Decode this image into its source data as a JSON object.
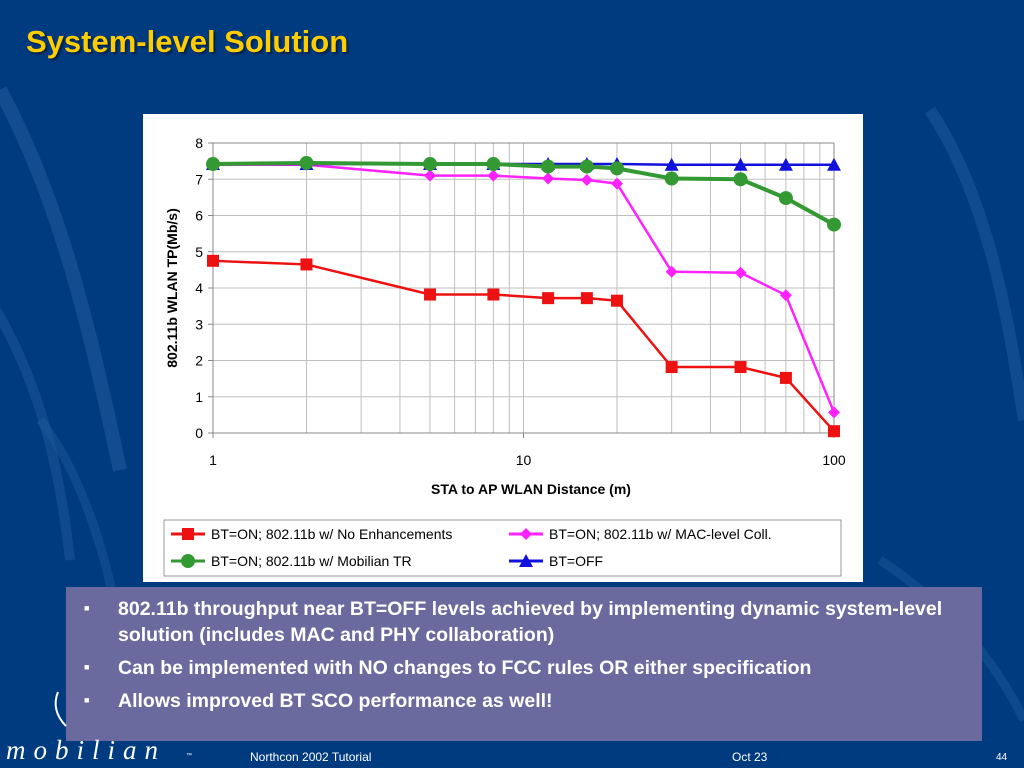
{
  "slide": {
    "title": "System-level Solution",
    "bullets": [
      "802.11b throughput near BT=OFF levels achieved by implementing dynamic system-level solution (includes MAC and PHY collaboration)",
      "Can be implemented with NO changes to FCC rules OR either specification",
      "Allows improved BT SCO performance as well!"
    ],
    "bullet_marker": "■"
  },
  "footer": {
    "logo": "mobilian",
    "logo_tm": "™",
    "event": "Northcon 2002 Tutorial",
    "date": "Oct 23",
    "page": "44"
  },
  "colors": {
    "background": "#003b80",
    "title": "#ffcc00",
    "bullet_box": "#6a6a9e"
  },
  "chart_data": {
    "type": "line",
    "title": "",
    "xlabel": "STA to AP WLAN Distance (m)",
    "ylabel": "802.11b WLAN TP(Mb/s)",
    "x_scale": "log",
    "xlim": [
      1,
      100
    ],
    "ylim": [
      0,
      8
    ],
    "x_ticks": [
      "1",
      "10",
      "100"
    ],
    "y_ticks": [
      "0",
      "1",
      "2",
      "3",
      "4",
      "5",
      "6",
      "7",
      "8"
    ],
    "grid": true,
    "legend_position": "bottom",
    "x": [
      1,
      2,
      5,
      8,
      12,
      16,
      20,
      30,
      50,
      70,
      100
    ],
    "series": [
      {
        "name": "BT=ON; 802.11b w/ No Enhancements",
        "color": "#ee1111",
        "marker": "square",
        "values": [
          4.75,
          4.65,
          3.82,
          3.82,
          3.72,
          3.72,
          3.65,
          1.82,
          1.82,
          1.52,
          0.05
        ]
      },
      {
        "name": "BT=ON; 802.11b w/ MAC-level Coll.",
        "color": "#ff22ff",
        "marker": "diamond",
        "values": [
          7.4,
          7.4,
          7.1,
          7.1,
          7.02,
          6.98,
          6.88,
          4.45,
          4.42,
          3.8,
          0.57
        ]
      },
      {
        "name": "BT=ON; 802.11b w/ Mobilian TR",
        "color": "#339933",
        "marker": "circle",
        "values": [
          7.42,
          7.45,
          7.42,
          7.42,
          7.35,
          7.35,
          7.3,
          7.02,
          7.0,
          6.48,
          5.75
        ]
      },
      {
        "name": "BT=OFF",
        "color": "#1111dd",
        "marker": "triangle",
        "values": [
          7.42,
          7.42,
          7.42,
          7.42,
          7.42,
          7.42,
          7.42,
          7.4,
          7.4,
          7.4,
          7.4
        ]
      }
    ]
  }
}
